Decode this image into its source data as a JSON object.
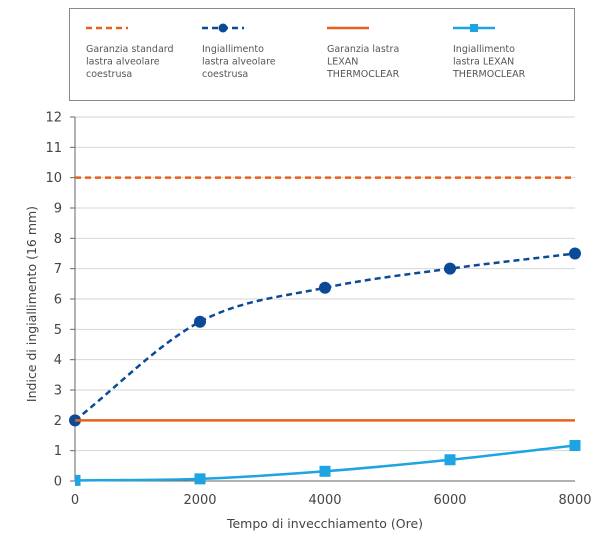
{
  "chart_data": {
    "type": "line",
    "xlabel": "Tempo di invecchiamento (Ore)",
    "ylabel": "Indice di ingiallimento (16 mm)",
    "xlim": [
      0,
      8000
    ],
    "ylim": [
      0,
      12
    ],
    "x_ticks": [
      "0",
      "2000",
      "4000",
      "6000",
      "8000"
    ],
    "y_ticks": [
      "0",
      "1",
      "2",
      "3",
      "4",
      "5",
      "6",
      "7",
      "8",
      "9",
      "10",
      "11",
      "12"
    ],
    "grid": "horizontal",
    "legend_position": "top",
    "series": [
      {
        "name_lines": [
          "Garanzia standard",
          "lastra alveolare",
          "coestrusa"
        ],
        "color": "#e8601c",
        "style": "dashed",
        "marker": "none",
        "x": [
          0,
          8000
        ],
        "y": [
          10,
          10
        ]
      },
      {
        "name_lines": [
          "Ingiallimento",
          "lastra alveolare",
          "coestrusa"
        ],
        "color": "#0b4a96",
        "style": "dashed",
        "marker": "circle",
        "x": [
          0,
          2000,
          4000,
          6000,
          8000
        ],
        "y": [
          2.0,
          5.25,
          6.37,
          7.0,
          7.5
        ]
      },
      {
        "name_lines": [
          "Garanzia lastra",
          "LEXAN",
          "THERMOCLEAR"
        ],
        "color": "#e8601c",
        "style": "solid",
        "marker": "none",
        "x": [
          0,
          8000
        ],
        "y": [
          2,
          2
        ]
      },
      {
        "name_lines": [
          "Ingiallimento",
          "lastra LEXAN",
          "THERMOCLEAR"
        ],
        "color": "#1ea4e0",
        "style": "solid",
        "marker": "square",
        "x": [
          0,
          2000,
          4000,
          6000,
          8000
        ],
        "y": [
          0.02,
          0.07,
          0.32,
          0.7,
          1.17
        ]
      }
    ]
  }
}
